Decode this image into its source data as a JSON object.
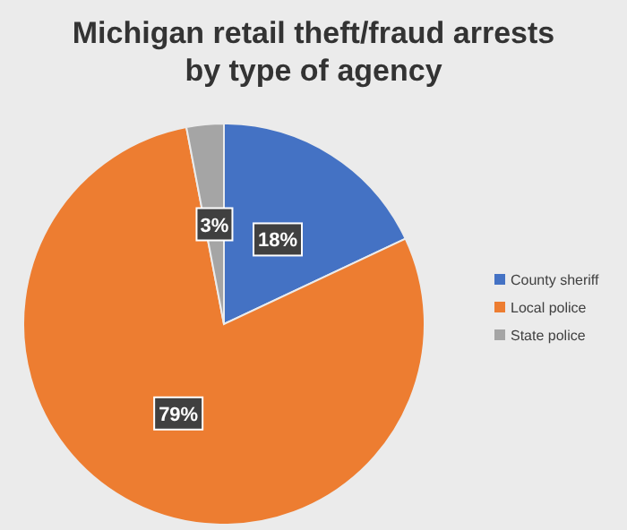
{
  "chart_data": {
    "type": "pie",
    "title": "Michigan retail theft/fraud arrests by type of agency",
    "categories": [
      "County sheriff",
      "Local police",
      "State police"
    ],
    "values": [
      18,
      79,
      3
    ],
    "colors": [
      "#4472c4",
      "#ed7d31",
      "#a5a5a5"
    ],
    "value_labels": [
      "18%",
      "79%",
      "3%"
    ],
    "legend": "right"
  }
}
